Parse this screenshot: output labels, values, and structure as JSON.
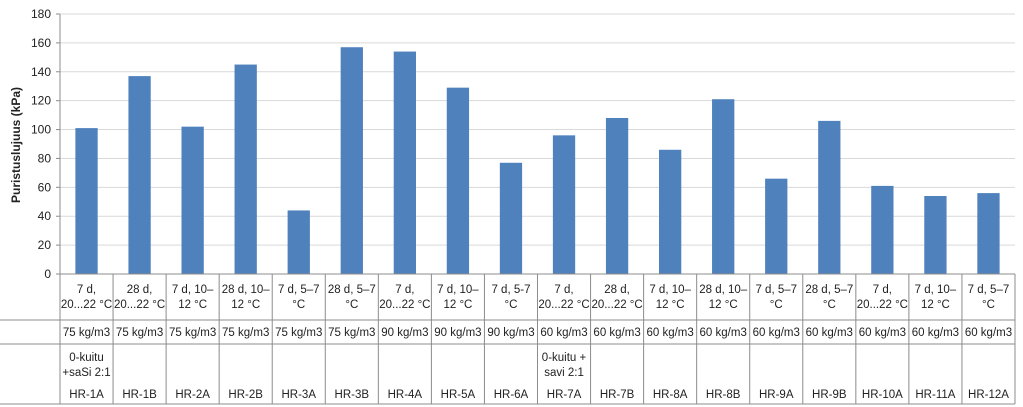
{
  "chart_data": {
    "type": "bar",
    "ylabel": "Puristuslujuus (kPa)",
    "ylim": [
      0,
      180
    ],
    "yticks": [
      0,
      20,
      40,
      60,
      80,
      100,
      120,
      140,
      160,
      180
    ],
    "grid": true,
    "bar_color": "#4f81bd",
    "categories": [
      "HR-1A",
      "HR-1B",
      "HR-2A",
      "HR-2B",
      "HR-3A",
      "HR-3B",
      "HR-4A",
      "HR-5A",
      "HR-6A",
      "HR-7A",
      "HR-7B",
      "HR-8A",
      "HR-8B",
      "HR-9A",
      "HR-9B",
      "HR-10A",
      "HR-11A",
      "HR-12A"
    ],
    "values": [
      101,
      137,
      102,
      145,
      44,
      157,
      154,
      129,
      77,
      96,
      108,
      86,
      121,
      66,
      106,
      61,
      54,
      56
    ],
    "conditions": [
      [
        "7 d,",
        "20...22 °C"
      ],
      [
        "28 d,",
        "20...22 °C"
      ],
      [
        "7 d, 10–",
        "12 °C"
      ],
      [
        "28 d, 10–",
        "12 °C"
      ],
      [
        "7 d, 5–7",
        "°C"
      ],
      [
        "28 d, 5–7",
        "°C"
      ],
      [
        "7 d,",
        "20...22 °C"
      ],
      [
        "7 d, 10–",
        "12 °C"
      ],
      [
        "7 d, 5-7",
        "°C"
      ],
      [
        "7 d,",
        "20...22 °C"
      ],
      [
        "28 d,",
        "20...22 °C"
      ],
      [
        "7 d, 10–",
        "12 °C"
      ],
      [
        "28 d, 10–",
        "12 °C"
      ],
      [
        "7 d, 5–7",
        "°C"
      ],
      [
        "28 d, 5–7",
        "°C"
      ],
      [
        "7 d,",
        "20...22 °C"
      ],
      [
        "7 d, 10–",
        "12 °C"
      ],
      [
        "7 d, 5–7",
        "°C"
      ]
    ],
    "dosages": [
      "75 kg/m3",
      "75 kg/m3",
      "75 kg/m3",
      "75 kg/m3",
      "75 kg/m3",
      "75 kg/m3",
      "90 kg/m3",
      "90 kg/m3",
      "90 kg/m3",
      "60 kg/m3",
      "60 kg/m3",
      "60 kg/m3",
      "60 kg/m3",
      "60 kg/m3",
      "60 kg/m3",
      "60 kg/m3",
      "60 kg/m3",
      "60 kg/m3"
    ],
    "binders": [
      [
        "0-kuitu",
        "+saSi 2:1"
      ],
      [],
      [],
      [],
      [],
      [],
      [],
      [],
      [],
      [
        "0-kuitu +",
        "savi 2:1"
      ],
      [],
      [],
      [],
      [],
      [],
      [],
      [],
      []
    ]
  }
}
